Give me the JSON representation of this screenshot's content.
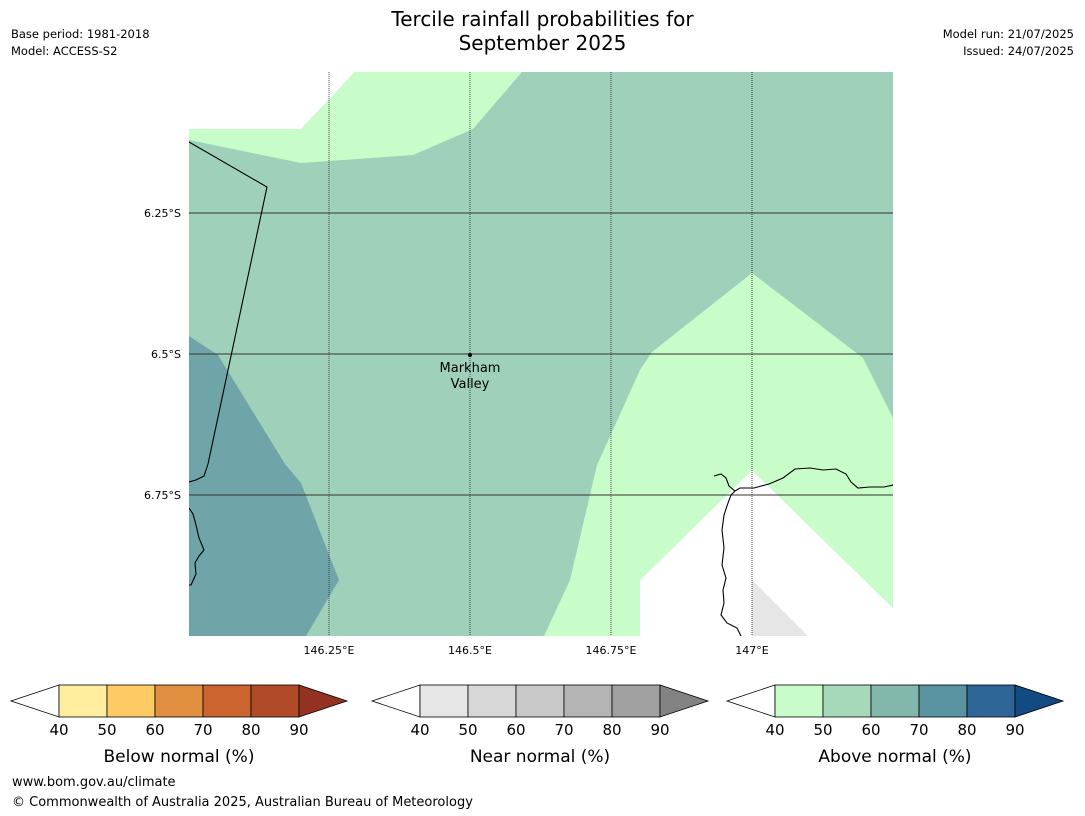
{
  "header": {
    "title_line1": "Tercile rainfall probabilities for",
    "title_line2": "September 2025",
    "base_period": "Base period: 1981-2018",
    "model": "Model: ACCESS-S2",
    "model_run": "Model run: 21/07/2025",
    "issued": "Issued: 24/07/2025"
  },
  "map": {
    "lat_labels": [
      "6.25°S",
      "6.5°S",
      "6.75°S"
    ],
    "lon_labels": [
      "146.25°E",
      "146.5°E",
      "146.75°E",
      "147°E"
    ],
    "place": {
      "name_line1": "Markham",
      "name_line2": "Valley"
    },
    "colors": {
      "above_40_50": "#c8fcc8",
      "above_50_60": "#9fd1ba",
      "above_60_70": "#6fa5a8",
      "near_40_50": "#e6e6e6",
      "gridline": "#333333"
    }
  },
  "legends": [
    {
      "label": "Below normal (%)",
      "ticks": [
        "40",
        "50",
        "60",
        "70",
        "80",
        "90"
      ],
      "colors": [
        "#ffeda0",
        "#feca63",
        "#e09040",
        "#cc6430",
        "#b04a28",
        "#943222"
      ]
    },
    {
      "label": "Near normal (%)",
      "ticks": [
        "40",
        "50",
        "60",
        "70",
        "80",
        "90"
      ],
      "colors": [
        "#e6e6e6",
        "#d7d7d7",
        "#c8c8c8",
        "#b4b4b4",
        "#a0a0a0",
        "#828282"
      ]
    },
    {
      "label": "Above normal (%)",
      "ticks": [
        "40",
        "50",
        "60",
        "70",
        "80",
        "90"
      ],
      "colors": [
        "#c8fcc8",
        "#a5d9ba",
        "#82b8ac",
        "#5a94a0",
        "#2e6496",
        "#144a82"
      ]
    }
  ],
  "footer": {
    "url": "www.bom.gov.au/climate",
    "copyright": "© Commonwealth of Australia 2025, Australian Bureau of Meteorology"
  }
}
